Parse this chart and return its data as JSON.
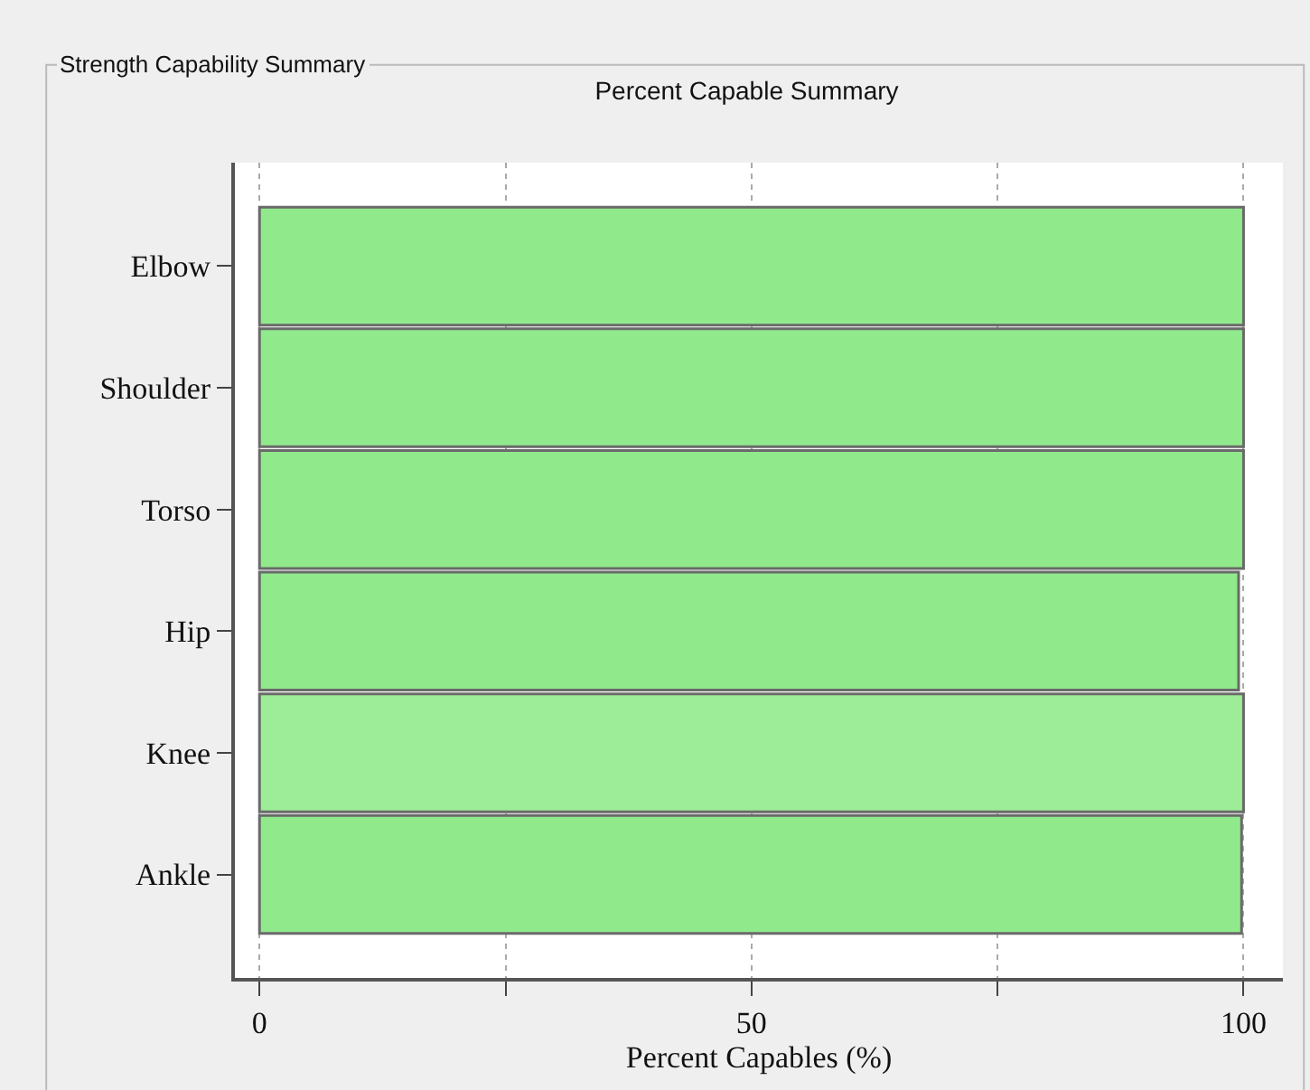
{
  "chart_data": {
    "type": "bar",
    "orientation": "horizontal",
    "title": "Percent Capable Summary",
    "xlabel": "Percent Capables (%)",
    "annotations": [
      "Strength Capability Summary"
    ],
    "categories": [
      "Elbow",
      "Shoulder",
      "Torso",
      "Hip",
      "Knee",
      "Ankle"
    ],
    "values": [
      100,
      100,
      100,
      99.5,
      100,
      99.8
    ],
    "colors": [
      "#90ea8c",
      "#90ea8c",
      "#90ea8c",
      "#90ea8c",
      "#9cec98",
      "#90ea8c"
    ],
    "xlim": [
      -2.5,
      104
    ],
    "xticks": [
      0,
      {
        "value": 25,
        "label": null
      },
      50,
      {
        "value": 75,
        "label": null
      },
      100
    ],
    "grid": "x"
  }
}
